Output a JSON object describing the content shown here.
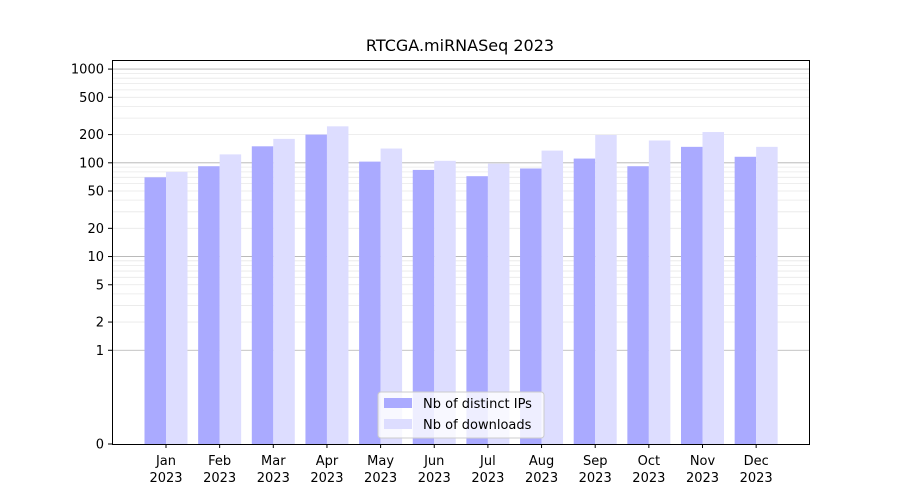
{
  "chart_data": {
    "type": "bar",
    "title": "RTCGA.miRNASeq 2023",
    "xlabel": "",
    "ylabel": "",
    "y_scale": "symlog",
    "ylim": [
      0,
      1250
    ],
    "y_ticks": [
      {
        "value": 0,
        "label": "0"
      },
      {
        "value": 1,
        "label": "1"
      },
      {
        "value": 2,
        "label": "2"
      },
      {
        "value": 5,
        "label": "5"
      },
      {
        "value": 10,
        "label": "10"
      },
      {
        "value": 20,
        "label": "20"
      },
      {
        "value": 50,
        "label": "50"
      },
      {
        "value": 100,
        "label": "100"
      },
      {
        "value": 200,
        "label": "200"
      },
      {
        "value": 500,
        "label": "500"
      },
      {
        "value": 1000,
        "label": "1000"
      }
    ],
    "categories": [
      [
        "Jan",
        "2023"
      ],
      [
        "Feb",
        "2023"
      ],
      [
        "Mar",
        "2023"
      ],
      [
        "Apr",
        "2023"
      ],
      [
        "May",
        "2023"
      ],
      [
        "Jun",
        "2023"
      ],
      [
        "Jul",
        "2023"
      ],
      [
        "Aug",
        "2023"
      ],
      [
        "Sep",
        "2023"
      ],
      [
        "Oct",
        "2023"
      ],
      [
        "Nov",
        "2023"
      ],
      [
        "Dec",
        "2023"
      ]
    ],
    "series": [
      {
        "name": "Nb of distinct IPs",
        "color": "#aaaaff",
        "values": [
          70,
          92,
          150,
          200,
          103,
          84,
          72,
          87,
          111,
          92,
          148,
          116
        ]
      },
      {
        "name": "Nb of downloads",
        "color": "#ddddff",
        "values": [
          80,
          123,
          180,
          245,
          142,
          105,
          98,
          135,
          198,
          173,
          213,
          148
        ]
      }
    ],
    "grid": true,
    "legend_position": "bottom-center"
  }
}
